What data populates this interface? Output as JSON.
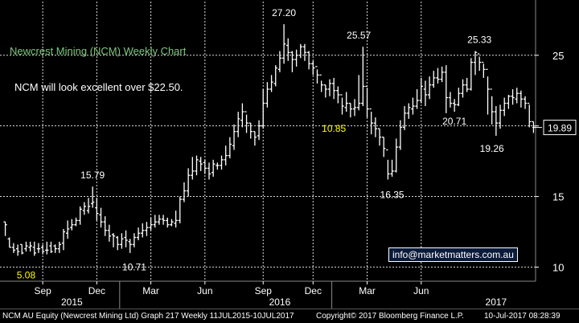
{
  "chart_data": {
    "type": "ohlc",
    "title": "Newcrest Mining (NCM) Weekly Chart",
    "subtitle": "NCM will look excellent over $22.50.",
    "ylim": [
      9,
      28.8
    ],
    "yticks": [
      10,
      15,
      20,
      25
    ],
    "x_month_labels": [
      "Sep",
      "Dec",
      "Mar",
      "Jun",
      "Sep",
      "Dec",
      "Mar",
      "Jun"
    ],
    "x_year_labels": [
      "2015",
      "2016",
      "2017"
    ],
    "last_price": "19.89",
    "annotations": [
      {
        "text": "27.20",
        "color": "#ffffff"
      },
      {
        "text": "25.57",
        "color": "#ffffff"
      },
      {
        "text": "25.33",
        "color": "#ffffff"
      },
      {
        "text": "15.79",
        "color": "#ffffff"
      },
      {
        "text": "5.08",
        "color": "#ffff00"
      },
      {
        "text": "10.71",
        "color": "#ffffff"
      },
      {
        "text": "10.85",
        "color": "#ffff00"
      },
      {
        "text": "16.35",
        "color": "#ffffff"
      },
      {
        "text": "20.71",
        "color": "#ffffff"
      },
      {
        "text": "19.26",
        "color": "#ffffff"
      }
    ],
    "ohlc": [
      [
        13.2,
        13.0,
        13.2,
        12.2
      ],
      [
        12.0,
        11.4,
        12.1,
        11.4
      ],
      [
        11.4,
        11.2,
        11.7,
        11.0
      ],
      [
        11.3,
        11.1,
        11.6,
        10.8
      ],
      [
        11.6,
        11.0,
        11.6,
        10.9
      ],
      [
        11.3,
        11.5,
        11.8,
        11.1
      ],
      [
        11.4,
        11.5,
        11.8,
        11.1
      ],
      [
        11.4,
        11.0,
        11.8,
        10.8
      ],
      [
        11.3,
        11.3,
        11.7,
        11.0
      ],
      [
        11.4,
        11.1,
        11.6,
        10.9
      ],
      [
        11.2,
        11.2,
        11.8,
        10.9
      ],
      [
        11.5,
        11.1,
        11.8,
        11.0
      ],
      [
        11.5,
        11.3,
        11.6,
        11.0
      ],
      [
        11.3,
        11.6,
        11.8,
        11.0
      ],
      [
        11.7,
        12.5,
        12.7,
        11.2
      ],
      [
        12.4,
        12.7,
        13.3,
        12.0
      ],
      [
        12.8,
        13.0,
        13.4,
        12.6
      ],
      [
        13.0,
        13.3,
        13.5,
        12.9
      ],
      [
        13.3,
        14.1,
        14.3,
        13.0
      ],
      [
        14.0,
        14.3,
        14.6,
        13.7
      ],
      [
        14.0,
        14.3,
        14.9,
        13.8
      ],
      [
        14.5,
        14.6,
        15.7,
        14.2
      ],
      [
        14.2,
        13.8,
        14.9,
        13.3
      ],
      [
        13.7,
        13.2,
        14.2,
        12.8
      ],
      [
        13.2,
        12.6,
        13.6,
        12.2
      ],
      [
        12.6,
        12.2,
        13.0,
        11.8
      ],
      [
        12.3,
        12.2,
        12.4,
        11.4
      ],
      [
        12.1,
        11.6,
        12.2,
        11.2
      ],
      [
        11.6,
        12.0,
        12.4,
        11.3
      ],
      [
        12.1,
        11.9,
        12.6,
        11.4
      ],
      [
        11.8,
        11.6,
        12.0,
        11.0
      ],
      [
        11.6,
        12.1,
        12.4,
        11.4
      ],
      [
        12.1,
        12.4,
        12.8,
        11.9
      ],
      [
        12.4,
        12.6,
        13.1,
        12.1
      ],
      [
        12.6,
        12.8,
        13.2,
        12.2
      ],
      [
        12.8,
        13.0,
        13.5,
        12.6
      ],
      [
        13.0,
        13.2,
        13.7,
        12.8
      ],
      [
        13.2,
        13.4,
        13.7,
        13.0
      ],
      [
        13.4,
        13.3,
        13.7,
        13.0
      ],
      [
        13.3,
        13.0,
        13.5,
        12.8
      ],
      [
        13.0,
        13.2,
        13.4,
        12.9
      ],
      [
        13.1,
        13.3,
        14.0,
        12.8
      ],
      [
        13.3,
        14.8,
        15.0,
        13.1
      ],
      [
        14.8,
        15.4,
        16.0,
        14.6
      ],
      [
        15.4,
        16.5,
        17.0,
        15.0
      ],
      [
        16.5,
        16.8,
        17.8,
        16.2
      ],
      [
        16.8,
        17.6,
        17.9,
        16.5
      ],
      [
        17.5,
        17.3,
        17.8,
        16.8
      ],
      [
        17.4,
        17.0,
        17.6,
        16.6
      ],
      [
        17.0,
        16.6,
        17.4,
        16.2
      ],
      [
        16.7,
        17.3,
        17.6,
        16.4
      ],
      [
        17.2,
        17.2,
        17.4,
        16.9
      ],
      [
        17.2,
        17.6,
        17.9,
        16.9
      ],
      [
        17.6,
        17.9,
        18.6,
        17.2
      ],
      [
        17.9,
        18.7,
        19.2,
        17.7
      ],
      [
        18.6,
        19.6,
        20.1,
        18.3
      ],
      [
        19.6,
        20.5,
        21.0,
        19.2
      ],
      [
        20.4,
        21.0,
        21.6,
        19.9
      ],
      [
        21.0,
        20.2,
        20.8,
        19.5
      ],
      [
        20.2,
        19.6,
        20.2,
        19.1
      ],
      [
        19.6,
        19.2,
        19.6,
        18.6
      ],
      [
        19.3,
        20.0,
        20.4,
        19.0
      ],
      [
        20.0,
        21.6,
        22.6,
        19.8
      ],
      [
        21.6,
        22.6,
        23.1,
        21.3
      ],
      [
        22.6,
        23.1,
        23.6,
        22.4
      ],
      [
        23.0,
        24.1,
        24.3,
        22.8
      ],
      [
        24.0,
        24.8,
        25.3,
        23.8
      ],
      [
        24.8,
        25.8,
        27.2,
        24.4
      ],
      [
        25.7,
        25.2,
        26.2,
        24.6
      ],
      [
        25.2,
        24.7,
        25.3,
        23.8
      ],
      [
        24.7,
        25.0,
        25.4,
        24.2
      ],
      [
        25.0,
        25.6,
        25.8,
        24.8
      ],
      [
        25.6,
        25.2,
        25.8,
        24.6
      ],
      [
        25.2,
        24.4,
        25.3,
        24.0
      ],
      [
        24.4,
        24.1,
        24.6,
        23.6
      ],
      [
        24.2,
        23.6,
        24.0,
        23.0
      ],
      [
        23.6,
        22.9,
        23.2,
        22.4
      ],
      [
        22.9,
        22.6,
        22.9,
        22.0
      ],
      [
        22.6,
        23.0,
        23.3,
        22.1
      ],
      [
        23.0,
        22.5,
        23.4,
        21.9
      ],
      [
        22.5,
        22.2,
        22.8,
        21.6
      ],
      [
        22.2,
        21.4,
        22.0,
        20.8
      ],
      [
        21.3,
        21.6,
        22.4,
        21.0
      ],
      [
        21.6,
        21.2,
        21.6,
        20.6
      ],
      [
        21.2,
        21.3,
        21.9,
        20.7
      ],
      [
        21.3,
        21.6,
        23.6,
        21.1
      ],
      [
        21.6,
        22.8,
        25.6,
        21.4
      ],
      [
        22.8,
        21.2,
        22.7,
        20.6
      ],
      [
        21.2,
        20.2,
        21.0,
        19.4
      ],
      [
        20.2,
        19.8,
        20.6,
        19.2
      ],
      [
        19.8,
        19.2,
        19.8,
        18.6
      ],
      [
        19.2,
        18.4,
        19.2,
        17.8
      ],
      [
        18.3,
        16.6,
        17.6,
        16.2
      ],
      [
        16.6,
        16.8,
        17.6,
        16.4
      ],
      [
        16.8,
        18.5,
        19.1,
        16.7
      ],
      [
        18.5,
        19.9,
        20.4,
        18.3
      ],
      [
        19.9,
        20.9,
        21.4,
        19.7
      ],
      [
        20.9,
        21.3,
        21.6,
        20.5
      ],
      [
        21.2,
        21.4,
        22.0,
        20.8
      ],
      [
        21.4,
        21.8,
        22.6,
        21.2
      ],
      [
        21.8,
        22.8,
        23.4,
        21.6
      ],
      [
        22.6,
        22.2,
        23.2,
        21.4
      ],
      [
        22.2,
        22.9,
        23.5,
        21.9
      ],
      [
        22.9,
        23.4,
        23.9,
        22.7
      ],
      [
        23.4,
        23.3,
        24.1,
        23.0
      ],
      [
        23.3,
        23.8,
        24.2,
        23.1
      ],
      [
        23.8,
        22.0,
        24.3,
        20.9
      ],
      [
        22.0,
        21.6,
        22.4,
        21.3
      ],
      [
        21.6,
        21.5,
        21.9,
        21.0
      ],
      [
        21.5,
        22.3,
        22.7,
        21.4
      ],
      [
        22.3,
        22.9,
        23.3,
        22.0
      ],
      [
        22.9,
        22.6,
        23.4,
        22.4
      ],
      [
        22.6,
        24.5,
        24.8,
        22.5
      ],
      [
        24.5,
        25.2,
        25.3,
        23.6
      ],
      [
        25.1,
        24.5,
        24.9,
        23.9
      ],
      [
        24.5,
        24.0,
        24.4,
        23.4
      ],
      [
        24.0,
        22.6,
        23.5,
        20.8
      ],
      [
        22.6,
        21.0,
        22.1,
        20.1
      ],
      [
        21.0,
        20.2,
        21.4,
        19.3
      ],
      [
        20.2,
        21.1,
        21.5,
        19.8
      ],
      [
        21.1,
        21.6,
        22.0,
        20.7
      ],
      [
        21.6,
        22.1,
        22.2,
        21.2
      ],
      [
        22.1,
        22.0,
        22.6,
        21.5
      ],
      [
        21.9,
        22.3,
        22.7,
        21.6
      ],
      [
        22.3,
        21.9,
        22.5,
        21.3
      ],
      [
        21.9,
        21.6,
        22.1,
        21.2
      ],
      [
        21.6,
        20.3,
        21.5,
        19.9
      ],
      [
        20.3,
        19.9,
        20.3,
        19.5
      ]
    ]
  },
  "footer": {
    "left": "NCM AU Equity (Newcrest Mining Ltd) Graph 217  Weekly 11JUL2015-10JUL2017",
    "center": "Copyright© 2017 Bloomberg Finance L.P.",
    "right": "10-Jul-2017 08:28:39"
  },
  "contact_email": "info@marketmatters.com.au",
  "colors": {
    "background": "#000000",
    "grid": "#dcdcdc",
    "bars": "#ffffff",
    "title": "#7cc87c",
    "highlight": "#ffff00"
  }
}
